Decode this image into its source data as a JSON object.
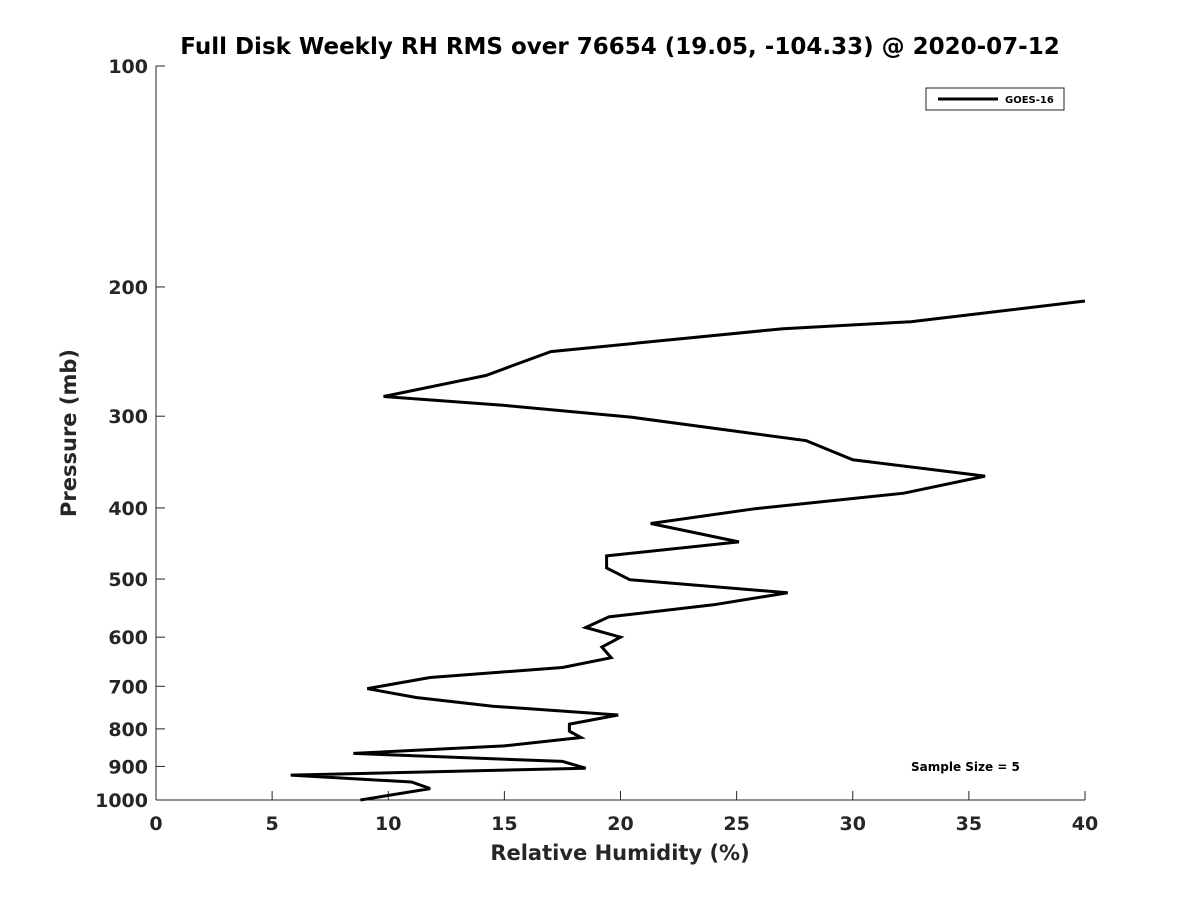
{
  "chart_data": {
    "type": "line",
    "title": "Full Disk Weekly RH RMS over 76654 (19.05, -104.33) @ 2020-07-12",
    "xlabel": "Relative Humidity (%)",
    "ylabel": "Pressure (mb)",
    "xlim": [
      0,
      40
    ],
    "ylim": [
      100,
      1000
    ],
    "yscale": "log",
    "reverse_y": true,
    "grid": false,
    "x_ticks": [
      0,
      5,
      10,
      15,
      20,
      25,
      30,
      35,
      40
    ],
    "x_tick_labels": [
      "0",
      "5",
      "10",
      "15",
      "20",
      "25",
      "30",
      "35",
      "40"
    ],
    "y_ticks": [
      100,
      200,
      300,
      400,
      500,
      600,
      700,
      800,
      900,
      1000
    ],
    "y_tick_labels": [
      "100",
      "200",
      "300",
      "400",
      "500",
      "600",
      "700",
      "800",
      "900",
      "1000"
    ],
    "legend": {
      "position": "top-right",
      "entries": [
        "GOES-16"
      ]
    },
    "annotation": "Sample Size = 5",
    "series": [
      {
        "name": "GOES-16",
        "color": "#000000",
        "points": [
          {
            "x": 40.0,
            "y": 209
          },
          {
            "x": 32.5,
            "y": 223
          },
          {
            "x": 27.0,
            "y": 228
          },
          {
            "x": 17.0,
            "y": 245
          },
          {
            "x": 14.2,
            "y": 264
          },
          {
            "x": 9.8,
            "y": 282
          },
          {
            "x": 15.0,
            "y": 290
          },
          {
            "x": 20.5,
            "y": 301
          },
          {
            "x": 28.0,
            "y": 324
          },
          {
            "x": 30.0,
            "y": 344
          },
          {
            "x": 35.7,
            "y": 362
          },
          {
            "x": 32.2,
            "y": 382
          },
          {
            "x": 25.8,
            "y": 401
          },
          {
            "x": 21.3,
            "y": 420
          },
          {
            "x": 25.1,
            "y": 445
          },
          {
            "x": 19.4,
            "y": 465
          },
          {
            "x": 19.4,
            "y": 483
          },
          {
            "x": 20.4,
            "y": 501
          },
          {
            "x": 27.2,
            "y": 522
          },
          {
            "x": 24.0,
            "y": 542
          },
          {
            "x": 19.5,
            "y": 563
          },
          {
            "x": 18.5,
            "y": 582
          },
          {
            "x": 20.0,
            "y": 600
          },
          {
            "x": 19.2,
            "y": 619
          },
          {
            "x": 19.6,
            "y": 640
          },
          {
            "x": 17.5,
            "y": 660
          },
          {
            "x": 11.8,
            "y": 681
          },
          {
            "x": 9.1,
            "y": 705
          },
          {
            "x": 11.2,
            "y": 725
          },
          {
            "x": 14.5,
            "y": 745
          },
          {
            "x": 19.9,
            "y": 766
          },
          {
            "x": 17.8,
            "y": 788
          },
          {
            "x": 17.8,
            "y": 806
          },
          {
            "x": 18.3,
            "y": 822
          },
          {
            "x": 15.0,
            "y": 844
          },
          {
            "x": 8.5,
            "y": 864
          },
          {
            "x": 17.5,
            "y": 886
          },
          {
            "x": 18.5,
            "y": 905
          },
          {
            "x": 5.8,
            "y": 925
          },
          {
            "x": 11.0,
            "y": 945
          },
          {
            "x": 11.8,
            "y": 965
          },
          {
            "x": 8.8,
            "y": 1000
          }
        ]
      }
    ]
  }
}
